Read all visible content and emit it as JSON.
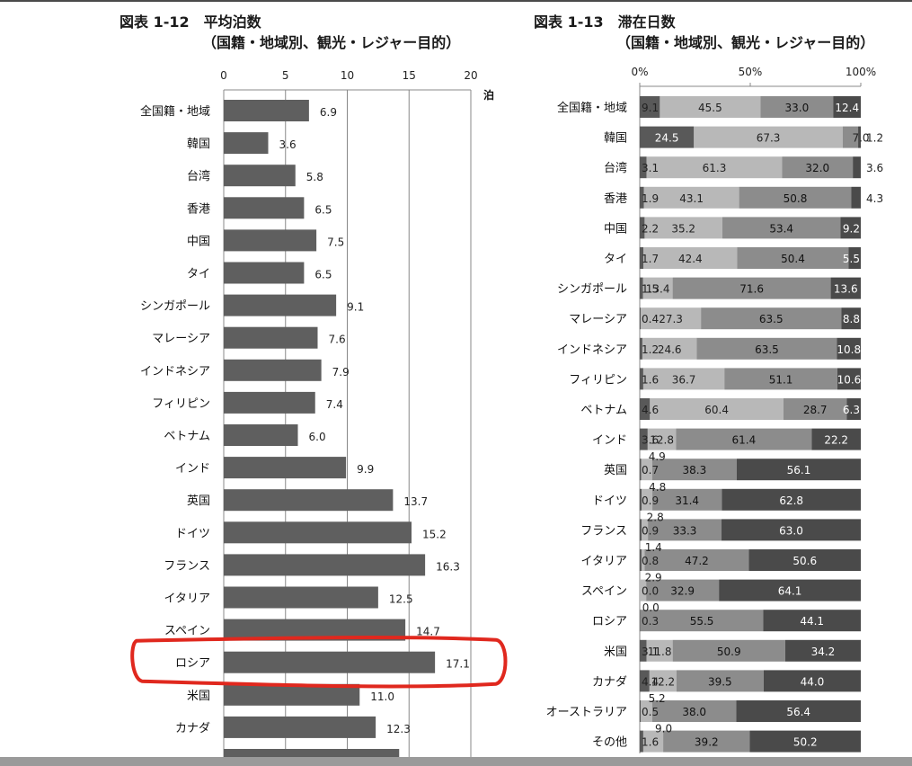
{
  "colors": {
    "bar": "#5f5f5f",
    "seg1": "#595959",
    "seg2": "#b8b8b8",
    "seg3": "#8c8c8c",
    "seg4": "#4a4a4a",
    "highlight": "#e0281e",
    "grid": "#888888"
  },
  "chart_data": [
    {
      "id": "fig-1-12",
      "type": "bar",
      "orientation": "horizontal",
      "title_line1": "図表 1-12　平均泊数",
      "title_line2": "（国籍・地域別、観光・レジャー目的）",
      "unit": "泊",
      "xlim": [
        0,
        20
      ],
      "xticks": [
        "0",
        "5",
        "10",
        "15",
        "20"
      ],
      "grid": true,
      "highlight_category": "ロシア",
      "categories": [
        "全国籍・地域",
        "韓国",
        "台湾",
        "香港",
        "中国",
        "タイ",
        "シンガポール",
        "マレーシア",
        "インドネシア",
        "フィリピン",
        "ベトナム",
        "インド",
        "英国",
        "ドイツ",
        "フランス",
        "イタリア",
        "スペイン",
        "ロシア",
        "米国",
        "カナダ"
      ],
      "values": [
        6.9,
        3.6,
        5.8,
        6.5,
        7.5,
        6.5,
        9.1,
        7.6,
        7.9,
        7.4,
        6.0,
        9.9,
        13.7,
        15.2,
        16.3,
        12.5,
        14.7,
        17.1,
        11.0,
        12.3
      ]
    },
    {
      "id": "fig-1-13",
      "type": "bar",
      "orientation": "horizontal",
      "stacked": "percent",
      "title_line1": "図表 1-13　滞在日数",
      "title_line2": "（国籍・地域別、観光・レジャー目的）",
      "xticks": [
        "0%",
        "50%",
        "100%"
      ],
      "categories": [
        "全国籍・地域",
        "韓国",
        "台湾",
        "香港",
        "中国",
        "タイ",
        "シンガポール",
        "マレーシア",
        "インドネシア",
        "フィリピン",
        "ベトナム",
        "インド",
        "英国",
        "ドイツ",
        "フランス",
        "イタリア",
        "スペイン",
        "ロシア",
        "米国",
        "カナダ",
        "オーストラリア",
        "その他"
      ],
      "series": [
        {
          "values": [
            9.1,
            24.5,
            3.1,
            1.9,
            2.2,
            1.7,
            1.5,
            0.4,
            1.2,
            1.6,
            4.6,
            3.6,
            0.7,
            0.9,
            0.9,
            0.8,
            0.0,
            0.3,
            3.1,
            4.4,
            0.5,
            1.6
          ]
        },
        {
          "values": [
            45.5,
            67.3,
            61.3,
            43.1,
            35.2,
            42.4,
            13.4,
            27.3,
            24.6,
            36.7,
            60.4,
            12.8,
            4.9,
            4.8,
            2.8,
            1.4,
            2.9,
            0.0,
            11.8,
            12.2,
            5.2,
            9.0
          ]
        },
        {
          "values": [
            33.0,
            7.0,
            32.0,
            50.8,
            53.4,
            50.4,
            71.6,
            63.5,
            63.5,
            51.1,
            28.7,
            61.4,
            38.3,
            31.4,
            33.3,
            47.2,
            32.9,
            55.5,
            50.9,
            39.5,
            38.0,
            39.2
          ]
        },
        {
          "values": [
            12.4,
            1.2,
            3.6,
            4.3,
            9.2,
            5.5,
            13.6,
            8.8,
            10.8,
            10.6,
            6.3,
            22.2,
            56.1,
            62.8,
            63.0,
            50.6,
            64.1,
            44.1,
            34.2,
            44.0,
            56.4,
            50.2
          ]
        }
      ]
    }
  ]
}
